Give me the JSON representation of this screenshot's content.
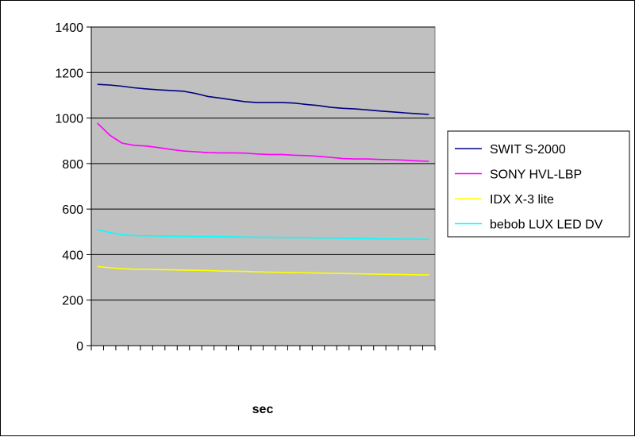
{
  "chart_data": {
    "type": "line",
    "title": "",
    "xlabel": "sec",
    "ylabel": "",
    "ylim": [
      0,
      1400
    ],
    "yticks": [
      0,
      200,
      400,
      600,
      800,
      1000,
      1200,
      1400
    ],
    "y_tick_labels": [
      "0",
      "200",
      "400",
      "600",
      "800",
      "1000",
      "1200",
      "1400"
    ],
    "x_category_count": 28,
    "grid": "horizontal major gridlines",
    "plot_background": "#c0c0c0",
    "legend_position": "right",
    "series": [
      {
        "name": "SWIT S-2000",
        "color": "#000080",
        "values": [
          1148,
          1145,
          1140,
          1133,
          1128,
          1124,
          1121,
          1118,
          1108,
          1095,
          1088,
          1080,
          1072,
          1068,
          1068,
          1068,
          1066,
          1060,
          1055,
          1047,
          1043,
          1040,
          1036,
          1031,
          1027,
          1023,
          1019,
          1016
        ]
      },
      {
        "name": "SONY  HVL-LBP",
        "color": "#ff00ff",
        "values": [
          978,
          925,
          890,
          880,
          877,
          870,
          862,
          855,
          852,
          848,
          847,
          847,
          846,
          842,
          840,
          840,
          837,
          835,
          832,
          827,
          822,
          820,
          820,
          818,
          817,
          815,
          812,
          810
        ]
      },
      {
        "name": "IDX X-3 lite",
        "color": "#ffff00",
        "values": [
          348,
          342,
          338,
          336,
          335,
          334,
          333,
          332,
          331,
          330,
          328,
          327,
          326,
          324,
          323,
          322,
          321,
          320,
          319,
          318,
          317,
          316,
          315,
          314,
          313,
          312,
          311,
          311
        ]
      },
      {
        "name": "bebob LUX LED DV",
        "color": "#00ffff",
        "values": [
          510,
          497,
          487,
          484,
          483,
          482,
          481,
          481,
          480,
          480,
          479,
          478,
          477,
          476,
          476,
          475,
          474,
          474,
          473,
          473,
          472,
          471,
          470,
          469,
          469,
          468,
          468,
          467
        ]
      }
    ]
  }
}
